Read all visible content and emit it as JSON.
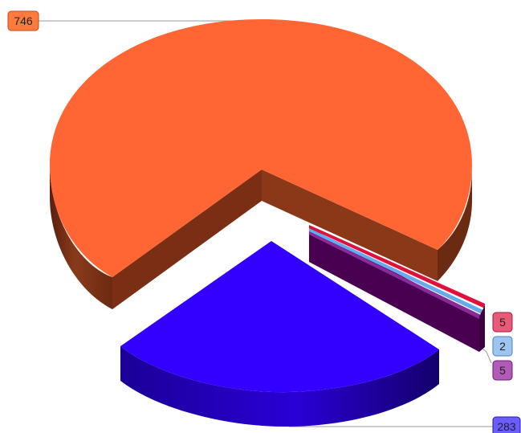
{
  "chart_data": {
    "type": "pie",
    "style": "3d-exploded",
    "title": "",
    "legend": "none",
    "slices": [
      {
        "value": 746,
        "label": "746",
        "color": "#ff6633",
        "side": "#7f3319",
        "label_bg": "#ff7a3d"
      },
      {
        "value": 5,
        "label": "5",
        "color": "#e0103a",
        "side": "#80071f",
        "label_bg": "#e85a78"
      },
      {
        "value": 2,
        "label": "2",
        "color": "#66aaee",
        "side": "#2f5f99",
        "label_bg": "#9cc6f0"
      },
      {
        "value": 5,
        "label": "5",
        "color": "#8a2a9a",
        "side": "#4a0050",
        "label_bg": "#b15ab8"
      },
      {
        "value": 283,
        "label": "283",
        "color": "#3300ff",
        "side": "#1a0090",
        "label_bg": "#6a5cff"
      }
    ]
  }
}
